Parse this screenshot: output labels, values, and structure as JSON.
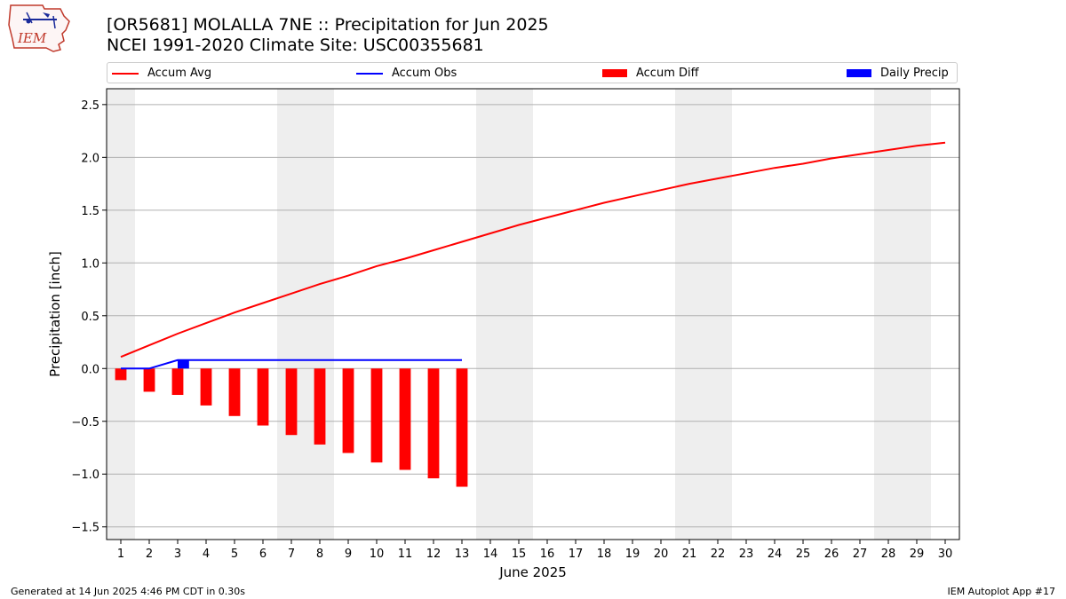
{
  "logo": {
    "text": "IEM"
  },
  "title": {
    "line1": "[OR5681] MOLALLA 7NE :: Precipitation for Jun 2025",
    "line2": "NCEI 1991-2020 Climate Site: USC00355681"
  },
  "legend": {
    "accum_avg": "Accum Avg",
    "accum_obs": "Accum Obs",
    "accum_diff": "Accum Diff",
    "daily_precip": "Daily Precip"
  },
  "footer": {
    "left": "Generated at 14 Jun 2025 4:46 PM CDT in 0.30s",
    "right": "IEM Autoplot App #17"
  },
  "colors": {
    "accum_avg": "#ff0000",
    "accum_obs": "#0000ff",
    "accum_diff": "#ff0000",
    "daily_precip": "#0000ff",
    "weekend_band": "#eeeeee",
    "grid": "#b0b0b0"
  },
  "chart_data": {
    "type": "line",
    "xlabel": "June 2025",
    "ylabel": "Precipitation [inch]",
    "xlim": [
      0.5,
      30.5
    ],
    "ylim": [
      -1.62,
      2.65
    ],
    "x_ticks": [
      1,
      2,
      3,
      4,
      5,
      6,
      7,
      8,
      9,
      10,
      11,
      12,
      13,
      14,
      15,
      16,
      17,
      18,
      19,
      20,
      21,
      22,
      23,
      24,
      25,
      26,
      27,
      28,
      29,
      30
    ],
    "y_ticks": [
      -1.5,
      -1.0,
      -0.5,
      0.0,
      0.5,
      1.0,
      1.5,
      2.0,
      2.5
    ],
    "y_tick_labels": [
      "−1.5",
      "−1.0",
      "−0.5",
      "0.0",
      "0.5",
      "1.0",
      "1.5",
      "2.0",
      "2.5"
    ],
    "grid": "horizontal",
    "legend_position": "top",
    "weekend_days": [
      1,
      7,
      8,
      14,
      15,
      21,
      22,
      28,
      29
    ],
    "series": [
      {
        "name": "Accum Avg",
        "type": "line",
        "x": [
          1,
          2,
          3,
          4,
          5,
          6,
          7,
          8,
          9,
          10,
          11,
          12,
          13,
          14,
          15,
          16,
          17,
          18,
          19,
          20,
          21,
          22,
          23,
          24,
          25,
          26,
          27,
          28,
          29,
          30
        ],
        "values": [
          0.11,
          0.22,
          0.33,
          0.43,
          0.53,
          0.62,
          0.71,
          0.8,
          0.88,
          0.97,
          1.04,
          1.12,
          1.2,
          1.28,
          1.36,
          1.43,
          1.5,
          1.57,
          1.63,
          1.69,
          1.75,
          1.8,
          1.85,
          1.9,
          1.94,
          1.99,
          2.03,
          2.07,
          2.11,
          2.14
        ]
      },
      {
        "name": "Accum Obs",
        "type": "line",
        "x": [
          1,
          2,
          3,
          4,
          5,
          6,
          7,
          8,
          9,
          10,
          11,
          12,
          13
        ],
        "values": [
          0.0,
          0.0,
          0.08,
          0.08,
          0.08,
          0.08,
          0.08,
          0.08,
          0.08,
          0.08,
          0.08,
          0.08,
          0.08
        ]
      },
      {
        "name": "Accum Diff",
        "type": "bar",
        "x": [
          1,
          2,
          3,
          4,
          5,
          6,
          7,
          8,
          9,
          10,
          11,
          12,
          13
        ],
        "values": [
          -0.11,
          -0.22,
          -0.25,
          -0.35,
          -0.45,
          -0.54,
          -0.63,
          -0.72,
          -0.8,
          -0.89,
          -0.96,
          -1.04,
          -1.12
        ]
      },
      {
        "name": "Daily Precip",
        "type": "bar",
        "x": [
          1,
          2,
          3,
          4,
          5,
          6,
          7,
          8,
          9,
          10,
          11,
          12,
          13
        ],
        "values": [
          0,
          0,
          0.08,
          0,
          0,
          0,
          0,
          0,
          0,
          0,
          0,
          0,
          0
        ]
      }
    ]
  }
}
